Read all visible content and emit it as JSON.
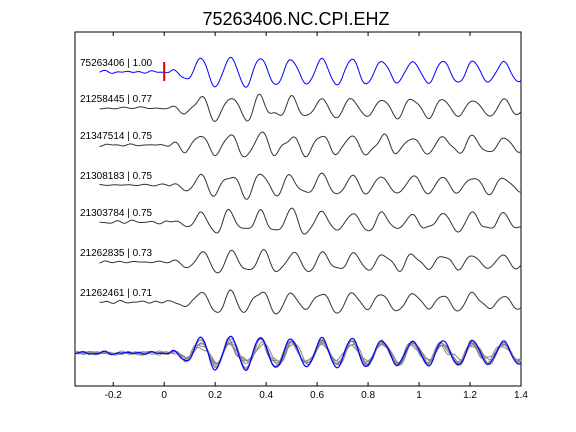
{
  "chart_data": {
    "type": "line",
    "title": "75263406.NC.CPI.EHZ",
    "xlabel": "",
    "ylabel": "",
    "xlim": [
      -0.35,
      1.4
    ],
    "xticks": [
      -0.2,
      0,
      0.2,
      0.4,
      0.6,
      0.8,
      1,
      1.2,
      1.4
    ],
    "xtick_labels": [
      "-0.2",
      "0",
      "0.2",
      "0.4",
      "0.6",
      "0.8",
      "1",
      "1.2",
      "1.4"
    ],
    "grid": false,
    "pick_time": 0,
    "colors": {
      "reference": "#0000ff",
      "trace": "#333333",
      "stack_gray": "#888888",
      "pick_marker": "#dd0000"
    },
    "traces": [
      {
        "label": "75263406 | 1.00",
        "id": "75263406",
        "correlation": 1.0,
        "color": "#0000ff"
      },
      {
        "label": "21258445 | 0.77",
        "id": "21258445",
        "correlation": 0.77,
        "color": "#333333"
      },
      {
        "label": "21347514 | 0.75",
        "id": "21347514",
        "correlation": 0.75,
        "color": "#333333"
      },
      {
        "label": "21308183 | 0.75",
        "id": "21308183",
        "correlation": 0.75,
        "color": "#333333"
      },
      {
        "label": "21303784 | 0.75",
        "id": "21303784",
        "correlation": 0.75,
        "color": "#333333"
      },
      {
        "label": "21262835 | 0.73",
        "id": "21262835",
        "correlation": 0.73,
        "color": "#333333"
      },
      {
        "label": "21262461 | 0.71",
        "id": "21262461",
        "correlation": 0.71,
        "color": "#333333"
      }
    ],
    "overlay": {
      "description_visible": false,
      "reference_color": "#0000ff",
      "others_color": "#888888"
    }
  }
}
